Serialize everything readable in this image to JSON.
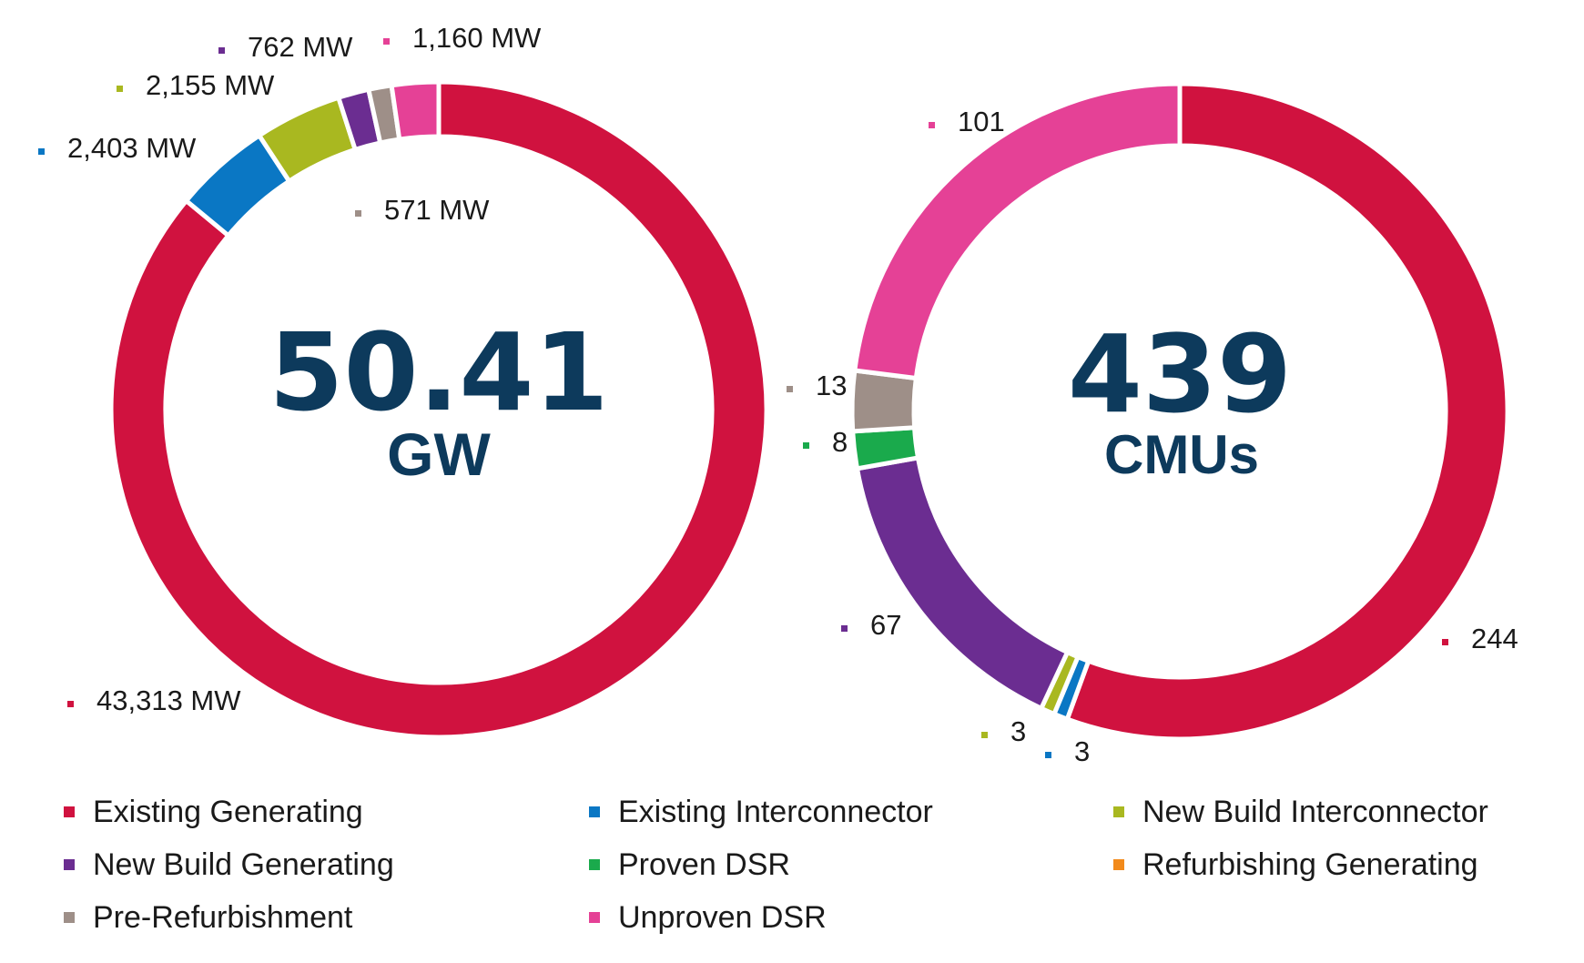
{
  "colors": {
    "existing_generating": "#d0123f",
    "existing_interconnector": "#0a77c4",
    "new_build_interconnector": "#a9b820",
    "new_build_generating": "#6b2d91",
    "proven_dsr": "#1aaa4c",
    "refurbishing_generating": "#f28a1b",
    "pre_refurbishment": "#9e8f88",
    "unproven_dsr": "#e54196"
  },
  "chart_data": [
    {
      "type": "donut",
      "center_value": "50.41",
      "center_unit": "GW",
      "slices": [
        {
          "category": "Existing Generating",
          "value": 43313,
          "label": "43,313 MW",
          "color": "#d0123f"
        },
        {
          "category": "Existing Interconnector",
          "value": 2403,
          "label": "2,403 MW",
          "color": "#0a77c4"
        },
        {
          "category": "New Build Interconnector",
          "value": 2155,
          "label": "2,155 MW",
          "color": "#a9b820"
        },
        {
          "category": "New Build Generating",
          "value": 762,
          "label": "762 MW",
          "color": "#6b2d91"
        },
        {
          "category": "Pre-Refurbishment",
          "value": 571,
          "label": "571 MW",
          "color": "#9e8f88"
        },
        {
          "category": "Unproven DSR",
          "value": 1160,
          "label": "1,160 MW",
          "color": "#e54196"
        }
      ]
    },
    {
      "type": "donut",
      "center_value": "439",
      "center_unit": "CMUs",
      "slices": [
        {
          "category": "Existing Generating",
          "value": 244,
          "label": "244",
          "color": "#d0123f"
        },
        {
          "category": "Existing Interconnector",
          "value": 3,
          "label": "3",
          "color": "#0a77c4"
        },
        {
          "category": "New Build Interconnector",
          "value": 3,
          "label": "3",
          "color": "#a9b820"
        },
        {
          "category": "New Build Generating",
          "value": 67,
          "label": "67",
          "color": "#6b2d91"
        },
        {
          "category": "Proven DSR",
          "value": 8,
          "label": "8",
          "color": "#1aaa4c"
        },
        {
          "category": "Pre-Refurbishment",
          "value": 13,
          "label": "13",
          "color": "#9e8f88"
        },
        {
          "category": "Unproven DSR",
          "value": 101,
          "label": "101",
          "color": "#e54196"
        }
      ]
    }
  ],
  "legend": [
    {
      "label": "Existing Generating",
      "color": "#d0123f"
    },
    {
      "label": "Existing Interconnector",
      "color": "#0a77c4"
    },
    {
      "label": "New Build Interconnector",
      "color": "#a9b820"
    },
    {
      "label": "New Build Generating",
      "color": "#6b2d91"
    },
    {
      "label": "Proven DSR",
      "color": "#1aaa4c"
    },
    {
      "label": "Refurbishing Generating",
      "color": "#f28a1b"
    },
    {
      "label": "Pre-Refurbishment",
      "color": "#9e8f88"
    },
    {
      "label": "Unproven DSR",
      "color": "#e54196"
    }
  ]
}
